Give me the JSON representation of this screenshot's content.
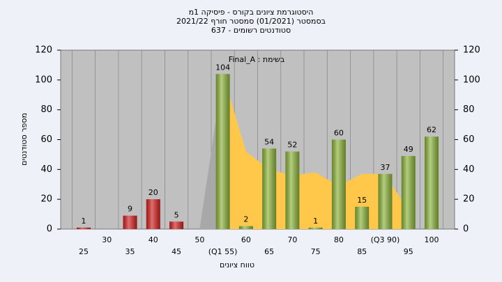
{
  "chart_data": {
    "type": "bar",
    "title": [
      "היסטוגרמת ציונים בקורס - פיסיקה 1מ",
      "בסמסטר (01/2021) סמסטר חורף 2021/22",
      "סטודנטים רשומים - 637"
    ],
    "annotation": "בשימת : Final_A",
    "y_label": "מספר סטודנטים",
    "x_label": "טווח ציונים",
    "categories": [
      "25",
      "30",
      "35",
      "40",
      "45",
      "50",
      "(Q1 55)",
      "60",
      "65",
      "70",
      "75",
      "80",
      "85",
      "(Q3 90)",
      "95",
      "100"
    ],
    "values": [
      1,
      null,
      9,
      20,
      5,
      null,
      104,
      2,
      54,
      52,
      1,
      60,
      15,
      37,
      49,
      62
    ],
    "colors": [
      "#d42020",
      "#d42020",
      "#d42020",
      "#d42020",
      "#d42020",
      "#d42020",
      "#8cb43a",
      "#8cb43a",
      "#8cb43a",
      "#8cb43a",
      "#8cb43a",
      "#8cb43a",
      "#8cb43a",
      "#8cb43a",
      "#8cb43a",
      "#8cb43a"
    ],
    "areas": [
      {
        "color": "#a8a8a8",
        "values": [
          null,
          null,
          null,
          null,
          null,
          0,
          104,
          null,
          null,
          null,
          null,
          null,
          null,
          null,
          null,
          null
        ]
      },
      {
        "color": "#ffc84a",
        "values": [
          null,
          null,
          null,
          null,
          null,
          null,
          104,
          52,
          40,
          36,
          38,
          29,
          37,
          37,
          12,
          null
        ]
      }
    ],
    "ylim": [
      0,
      120
    ],
    "yticks": [
      0,
      20,
      40,
      60,
      80,
      100,
      120
    ],
    "grid": true
  }
}
